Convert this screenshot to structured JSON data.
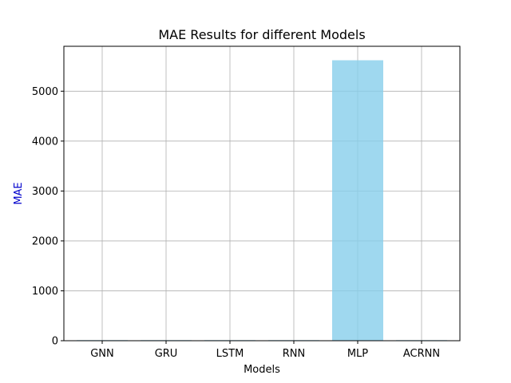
{
  "chart_data": {
    "type": "bar",
    "title": "MAE Results for different Models",
    "xlabel": "Models",
    "ylabel": "MAE",
    "categories": [
      "GNN",
      "GRU",
      "LSTM",
      "RNN",
      "MLP",
      "ACRNN"
    ],
    "values": [
      12,
      12,
      12,
      12,
      5620,
      12
    ],
    "ylim": [
      0,
      5900
    ],
    "yticks": [
      0,
      1000,
      2000,
      3000,
      4000,
      5000
    ],
    "grid": true,
    "colors": {
      "bar": "#87ceeb",
      "ylabel": "#0000cc",
      "grid": "#b0b0b0",
      "axis": "#000000"
    }
  }
}
